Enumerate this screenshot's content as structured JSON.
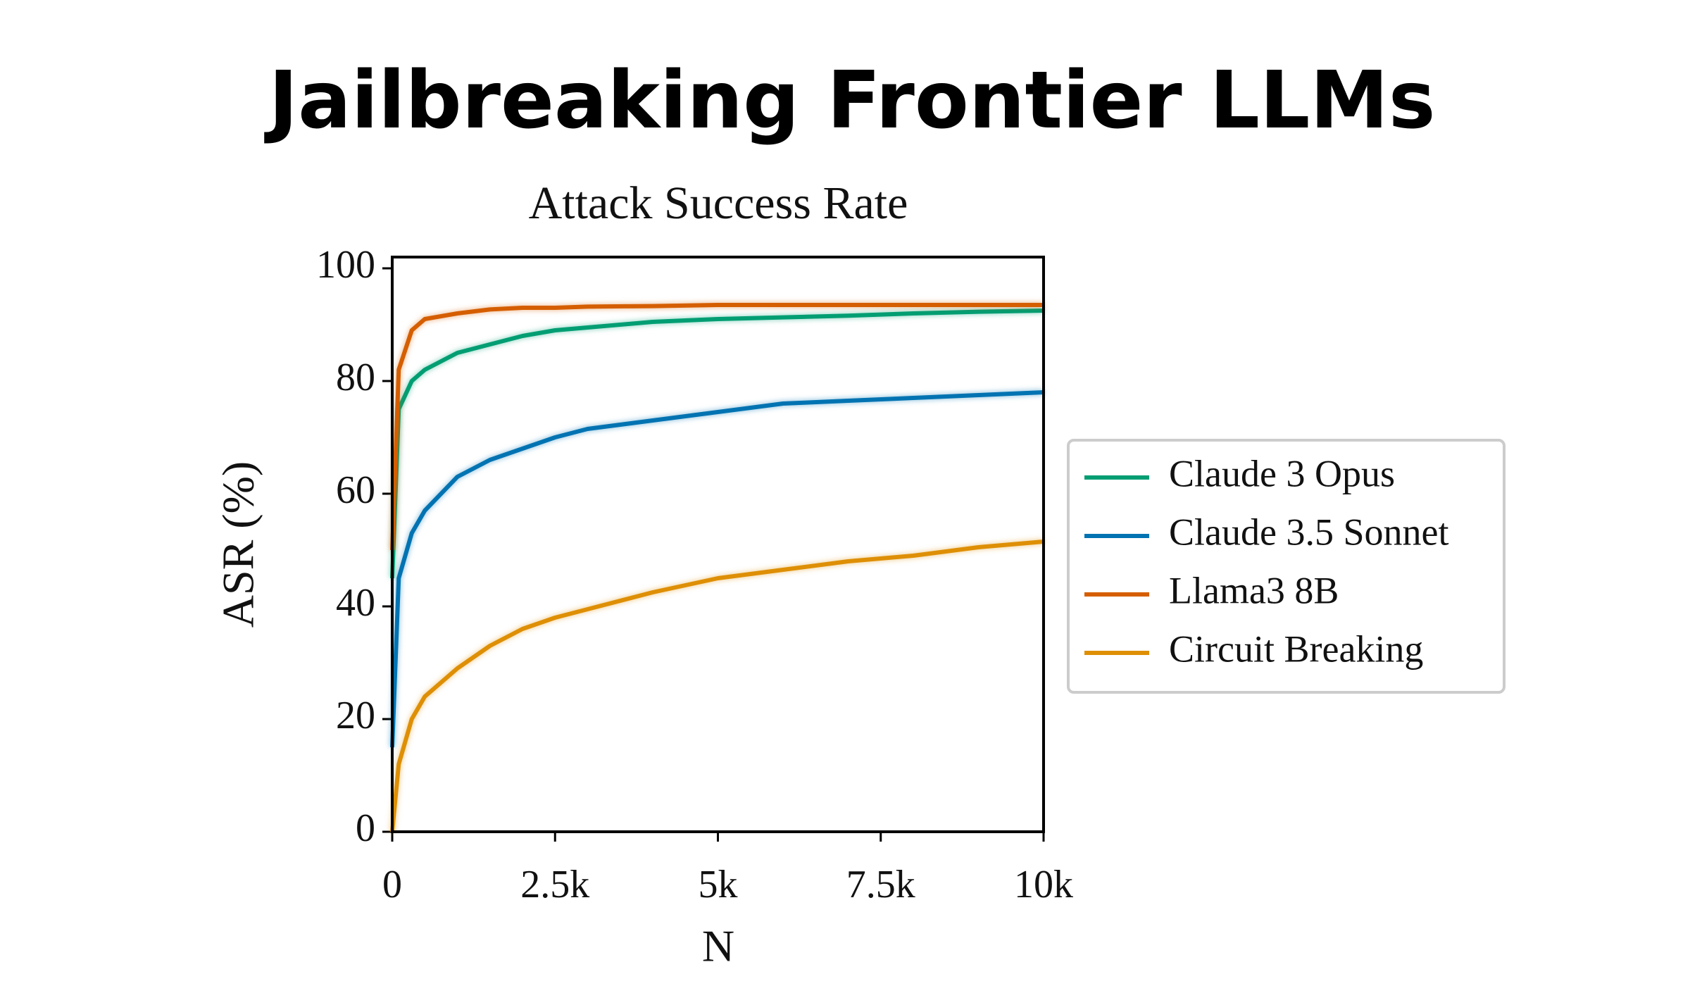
{
  "heading": "Jailbreaking Frontier LLMs",
  "chart_data": {
    "type": "line",
    "title": "Attack Success Rate",
    "x_label": "N",
    "y_label": "ASR (%)",
    "x": [
      0,
      100,
      300,
      500,
      1000,
      1500,
      2000,
      2500,
      3000,
      4000,
      5000,
      6000,
      7000,
      8000,
      9000,
      10000
    ],
    "series": [
      {
        "name": "Claude 3 Opus",
        "color": "#029e73",
        "values": [
          45,
          75,
          80,
          82,
          85,
          86.5,
          88,
          89,
          89.5,
          90.5,
          91,
          91.3,
          91.6,
          92,
          92.3,
          92.5
        ]
      },
      {
        "name": "Claude 3.5 Sonnet",
        "color": "#0173b2",
        "values": [
          15,
          45,
          53,
          57,
          63,
          66,
          68,
          70,
          71.5,
          73,
          74.5,
          76,
          76.5,
          77,
          77.5,
          78
        ]
      },
      {
        "name": "Llama3 8B",
        "color": "#d55e00",
        "values": [
          50,
          82,
          89,
          91,
          92,
          92.7,
          93,
          93,
          93.2,
          93.3,
          93.5,
          93.5,
          93.5,
          93.5,
          93.5,
          93.5
        ]
      },
      {
        "name": "Circuit Breaking",
        "color": "#de8f05",
        "values": [
          0,
          12,
          20,
          24,
          29,
          33,
          36,
          38,
          39.5,
          42.5,
          45,
          46.5,
          48,
          49,
          50.5,
          51.5
        ]
      }
    ],
    "xlim": [
      0,
      10000
    ],
    "xticks": [
      0,
      {
        "value": 2500,
        "label": "2.5k"
      },
      {
        "value": 5000,
        "label": "5k"
      },
      {
        "value": 7500,
        "label": "7.5k"
      },
      {
        "value": 10000,
        "label": "10k"
      }
    ],
    "ylim": [
      0,
      102
    ],
    "yticks": [
      0,
      20,
      40,
      60,
      80,
      100
    ],
    "grid": false,
    "legend": "right"
  }
}
